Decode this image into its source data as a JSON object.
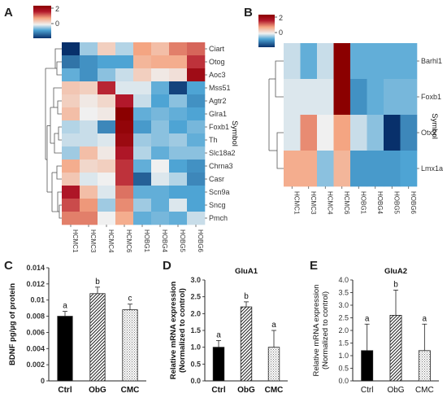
{
  "panel_labels": [
    "A",
    "B",
    "C",
    "D",
    "E"
  ],
  "chart_data": [
    {
      "panel": "A",
      "type": "heatmap",
      "colorbar": {
        "ticks": [
          "2",
          "0"
        ],
        "colors": [
          "#08306b",
          "#4ea4d4",
          "#f0f0f0",
          "#f4a582",
          "#b2182b",
          "#8b0000"
        ]
      },
      "axis_label": "Symbol",
      "columns": [
        "HCMC1",
        "HCMC3",
        "HCMC4",
        "HCMC6",
        "HOBG1",
        "HOBG4",
        "HOBG5",
        "HOBG6"
      ],
      "rows": [
        "Ciart",
        "Otog",
        "Aoc3",
        "Mss51",
        "Agtr2",
        "Glra1",
        "Foxb1",
        "Th",
        "Slc18a2",
        "Chrna3",
        "Casr",
        "Scn9a",
        "Sncg",
        "Pmch"
      ],
      "values": [
        [
          -2.2,
          -0.6,
          0.2,
          -0.5,
          0.7,
          0.4,
          1.0,
          1.2
        ],
        [
          -1.5,
          -1.2,
          -1.0,
          -1.0,
          0.5,
          0.6,
          0.6,
          1.6
        ],
        [
          -0.9,
          -1.2,
          -0.7,
          -0.4,
          0.2,
          -0.1,
          0.0,
          2.3
        ],
        [
          0.3,
          0.2,
          1.7,
          -0.3,
          -0.3,
          -0.9,
          -2.0,
          -1.0
        ],
        [
          0.2,
          -0.1,
          0.1,
          1.8,
          -0.4,
          -1.0,
          -0.7,
          -1.2
        ],
        [
          0.4,
          -0.2,
          -0.1,
          2.8,
          -0.9,
          -0.8,
          -0.9,
          -1.0
        ],
        [
          -0.5,
          -0.4,
          -1.3,
          2.6,
          -1.1,
          -0.7,
          -1.0,
          -0.8
        ],
        [
          -0.4,
          -0.4,
          -0.3,
          2.4,
          -0.6,
          -0.7,
          -0.6,
          -0.9
        ],
        [
          -0.6,
          0.4,
          -0.1,
          1.9,
          -0.5,
          -0.9,
          -0.7,
          -0.7
        ],
        [
          0.6,
          0.1,
          0.2,
          1.6,
          -0.9,
          -0.2,
          -1.0,
          -1.2
        ],
        [
          0.3,
          -0.3,
          -0.2,
          1.6,
          -1.7,
          -0.3,
          -0.5,
          -1.3
        ],
        [
          1.9,
          0.4,
          -0.3,
          1.1,
          -0.9,
          -0.9,
          -1.0,
          -1.0
        ],
        [
          1.4,
          0.8,
          -0.6,
          0.9,
          -0.6,
          -0.9,
          -0.3,
          -1.0
        ],
        [
          1.0,
          1.0,
          -0.2,
          0.6,
          -0.9,
          -0.8,
          -0.9,
          -0.4
        ]
      ]
    },
    {
      "panel": "B",
      "type": "heatmap",
      "colorbar": {
        "ticks": [
          "2",
          "0"
        ],
        "colors": [
          "#08306b",
          "#4ea4d4",
          "#f0f0f0",
          "#f4a582",
          "#b2182b",
          "#8b0000"
        ]
      },
      "axis_label": "Symbol",
      "columns": [
        "HCMC1",
        "HCMC3",
        "HCMC4",
        "HCMC6",
        "HOBG1",
        "HOBG4",
        "HOBG5",
        "HOBG6"
      ],
      "rows": [
        "Barhl1",
        "Foxb1",
        "Otx2",
        "Lmx1a"
      ],
      "values": [
        [
          -0.4,
          -0.9,
          -0.4,
          2.8,
          -0.9,
          -0.9,
          -0.9,
          -0.9
        ],
        [
          -0.3,
          -0.3,
          -0.3,
          2.8,
          -1.2,
          -0.9,
          -0.8,
          -0.8
        ],
        [
          -0.3,
          0.9,
          -0.2,
          0.7,
          -0.4,
          -0.7,
          -2.2,
          -1.3
        ],
        [
          0.6,
          0.6,
          -0.7,
          0.5,
          -1.1,
          -1.1,
          -1.1,
          -1.0
        ]
      ]
    },
    {
      "panel": "C",
      "type": "bar",
      "categories": [
        "Ctrl",
        "ObG",
        "CMC"
      ],
      "values": [
        0.008,
        0.0108,
        0.0088
      ],
      "errors": [
        0.0006,
        0.0008,
        0.0007
      ],
      "letters": [
        "a",
        "b",
        "c"
      ],
      "ylabel": "BDNF pg/µg of protein",
      "ylim": [
        0,
        0.014
      ],
      "yticks": [
        "0",
        "0.002",
        "0.004",
        "0.006",
        "0.008",
        "0.01",
        "0.012",
        "0.014"
      ],
      "title": "",
      "patterns": [
        "solid",
        "diagonal",
        "dots"
      ],
      "bold": true
    },
    {
      "panel": "D",
      "type": "bar",
      "categories": [
        "Ctrl",
        "ObG",
        "CMC"
      ],
      "values": [
        1.0,
        2.2,
        1.0
      ],
      "errors": [
        0.2,
        0.15,
        0.5
      ],
      "letters": [
        "a",
        "b",
        "a"
      ],
      "ylabel": "Relative mRNA expression",
      "ylabel2": "(Normalized to control)",
      "ylim": [
        0,
        3.0
      ],
      "yticks": [
        "0.0",
        "0.5",
        "1.0",
        "1.5",
        "2.0",
        "2.5",
        "3.0"
      ],
      "title": "GluA1",
      "patterns": [
        "solid",
        "diagonal",
        "dots"
      ],
      "bold": true
    },
    {
      "panel": "E",
      "type": "bar",
      "categories": [
        "Ctrl",
        "ObG",
        "CMC"
      ],
      "values": [
        1.2,
        2.6,
        1.2
      ],
      "errors": [
        1.05,
        1.0,
        1.05
      ],
      "letters": [
        "a",
        "b",
        "a"
      ],
      "ylabel": "Relative mRNA expression",
      "ylabel2": "(Normalized to control)",
      "ylim": [
        0,
        4.0
      ],
      "yticks": [
        "0.0",
        "0.5",
        "1.0",
        "1.5",
        "2.0",
        "2.5",
        "3.0",
        "3.5",
        "4.0"
      ],
      "title": "GluA2",
      "patterns": [
        "solid",
        "diagonal",
        "dots"
      ],
      "bold": false
    }
  ]
}
